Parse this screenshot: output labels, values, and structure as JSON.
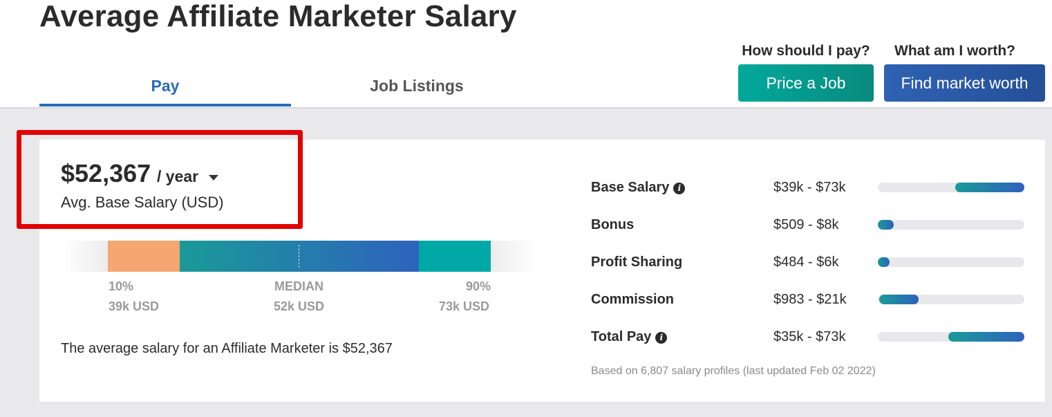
{
  "page": {
    "title": "Average Affiliate Marketer Salary"
  },
  "tabs": [
    {
      "label": "Pay",
      "active": true
    },
    {
      "label": "Job Listings",
      "active": false
    }
  ],
  "cta": {
    "price_question": "How should I pay?",
    "price_button": "Price a Job",
    "worth_question": "What am I worth?",
    "worth_button": "Find market worth"
  },
  "salary": {
    "amount": "$52,367",
    "period": "/ year",
    "subtitle": "Avg. Base Salary (USD)",
    "summary": "The average salary for an Affiliate Marketer is $52,367"
  },
  "range": {
    "p10_label": "10%",
    "p10_value": "39k USD",
    "median_label": "MEDIAN",
    "median_value": "52k USD",
    "p90_label": "90%",
    "p90_value": "73k USD"
  },
  "breakdown": [
    {
      "label": "Base Salary",
      "info": true,
      "range": "$39k - $73k",
      "fill_start": 0.53,
      "fill_end": 1.0
    },
    {
      "label": "Bonus",
      "info": false,
      "range": "$509 - $8k",
      "fill_start": 0.0,
      "fill_end": 0.11
    },
    {
      "label": "Profit Sharing",
      "info": false,
      "range": "$484 - $6k",
      "fill_start": 0.0,
      "fill_end": 0.08
    },
    {
      "label": "Commission",
      "info": false,
      "range": "$983 - $21k",
      "fill_start": 0.01,
      "fill_end": 0.28
    },
    {
      "label": "Total Pay",
      "info": true,
      "range": "$35k - $73k",
      "fill_start": 0.48,
      "fill_end": 1.0
    }
  ],
  "footnote": "Based on 6,807 salary profiles (last updated Feb 02 2022)",
  "colors": {
    "accent_blue": "#2a6bb8",
    "teal": "#00a99d",
    "highlight_red": "#e00000",
    "p10_orange": "#f6a670"
  }
}
